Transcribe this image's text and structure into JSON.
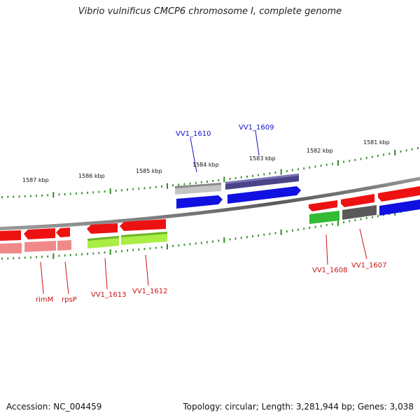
{
  "title": "Vibrio vulnificus CMCP6 chromosome I, complete genome",
  "footer": {
    "accession": "Accession: NC_004459",
    "summary": "Topology: circular; Length: 3,281,944 bp; Genes: 3,038"
  },
  "colors": {
    "backbone": "#777777",
    "tick": "#2e8b22",
    "label_top": "#1010cc",
    "label_bottom": "#cc1111"
  },
  "tick_labels": [
    "1587 kbp",
    "1586 kbp",
    "1585 kbp",
    "1584 kbp",
    "1583 kbp",
    "1582 kbp",
    "1581 kbp"
  ],
  "genes": [
    {
      "id": "VV1_1610",
      "strand": "top",
      "label": "VV1_1610"
    },
    {
      "id": "VV1_1609",
      "strand": "top",
      "label": "VV1_1609"
    },
    {
      "id": "VV1_1608",
      "strand": "bottom",
      "label": "VV1_1608"
    },
    {
      "id": "VV1_1607",
      "strand": "bottom",
      "label": "VV1_1607"
    },
    {
      "id": "VV1_1613",
      "strand": "bottom",
      "label": "VV1_1613"
    },
    {
      "id": "VV1_1612",
      "strand": "bottom",
      "label": "VV1_1612"
    },
    {
      "id": "rimM",
      "strand": "bottom",
      "label": "rimM"
    },
    {
      "id": "rpsP",
      "strand": "bottom",
      "label": "rpsP"
    }
  ]
}
